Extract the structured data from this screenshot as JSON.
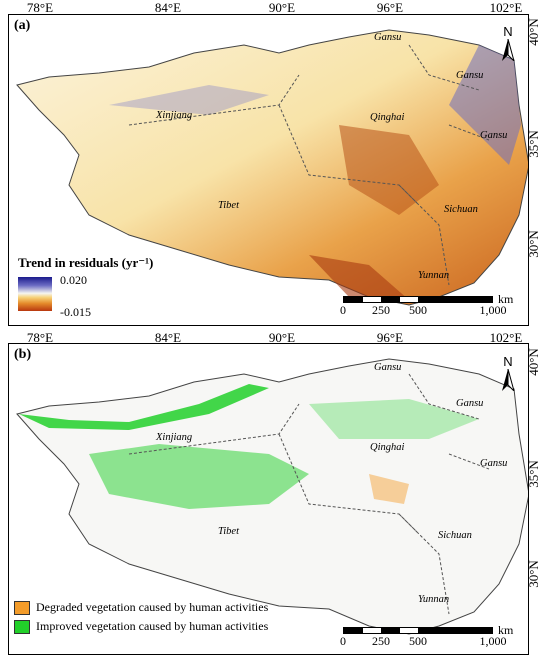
{
  "axes": {
    "top_labels": [
      "78°E",
      "84°E",
      "90°E",
      "96°E",
      "102°E"
    ],
    "right_labels": [
      "40°N",
      "35°N",
      "30°N"
    ]
  },
  "panel_a": {
    "label": "(a)",
    "legend_title": "Trend in residuals (yr⁻¹)",
    "legend_max": "0.020",
    "legend_min": "-0.015",
    "colors": {
      "positive": "#1a1a8c",
      "negative": "#b8370f",
      "mid": "#f7d27a"
    }
  },
  "panel_b": {
    "label": "(b)",
    "legend": [
      {
        "label": "Degraded vegetation caused by human activities",
        "color": "#f39c2a"
      },
      {
        "label": "Improved vegetation caused by human activities",
        "color": "#22d02a"
      }
    ]
  },
  "provinces": [
    "Gansu",
    "Gansu",
    "Xinjiang",
    "Qinghai",
    "Gansu",
    "Tibet",
    "Sichuan",
    "Yunnan"
  ],
  "north_arrow": "N",
  "scale": {
    "unit": "km",
    "ticks": [
      "0",
      "250",
      "500",
      "1,000"
    ]
  }
}
